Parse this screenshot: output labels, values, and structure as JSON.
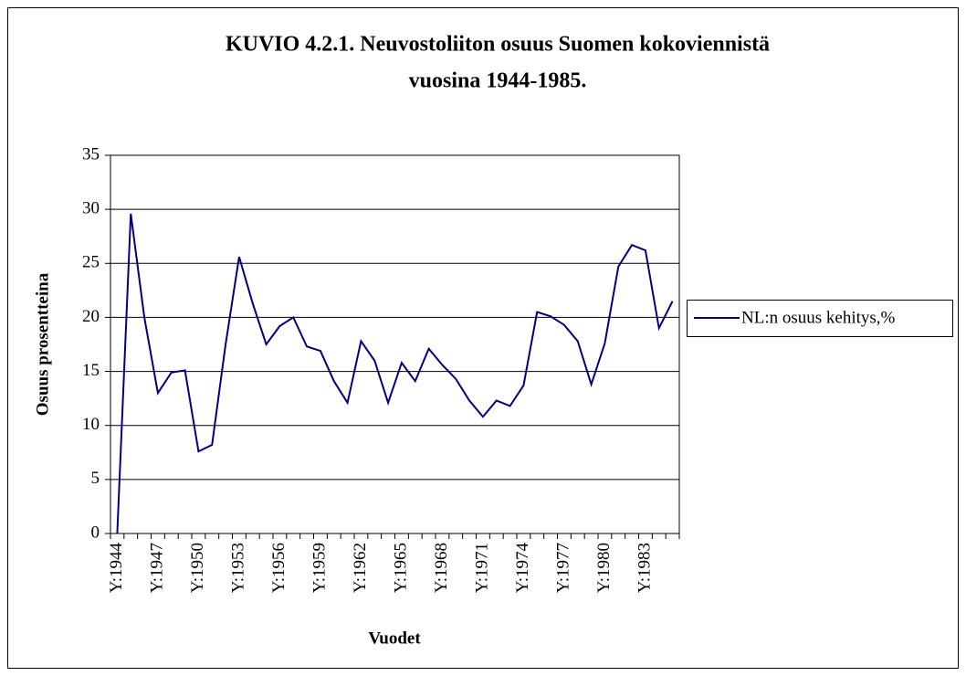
{
  "chart_data": {
    "type": "line",
    "title": [
      "KUVIO 4.2.1. Neuvostoliiton osuus Suomen kokoviennistä",
      "vuosina 1944-1985."
    ],
    "y_label": "Osuus prosentteina",
    "x_label": "Vuodet",
    "categories": [
      "Y:1944",
      null,
      null,
      "Y:1947",
      null,
      null,
      "Y:1950",
      null,
      null,
      "Y:1953",
      null,
      null,
      "Y:1956",
      null,
      null,
      "Y:1959",
      null,
      null,
      "Y:1962",
      null,
      null,
      "Y:1965",
      null,
      null,
      "Y:1968",
      null,
      null,
      "Y:1971",
      null,
      null,
      "Y:1974",
      null,
      null,
      "Y:1977",
      null,
      null,
      "Y:1980",
      null,
      null,
      "Y:1983",
      null,
      null
    ],
    "series": [
      {
        "name": "NL:n osuus kehitys,%",
        "color": "#000080",
        "values": [
          0,
          29.6,
          20,
          13,
          14.9,
          15.1,
          7.6,
          8.2,
          17.5,
          25.6,
          21.3,
          17.5,
          19.2,
          20,
          17.3,
          16.9,
          14.1,
          12.1,
          17.8,
          16,
          12.1,
          15.8,
          14.1,
          17.1,
          15.6,
          14.3,
          12.3,
          10.8,
          12.3,
          11.8,
          13.7,
          20.5,
          20.1,
          19.3,
          17.8,
          13.8,
          17.6,
          24.7,
          26.7,
          26.2,
          19,
          21.5
        ]
      }
    ],
    "ylim": [
      0,
      35
    ],
    "yticks": [
      0,
      5,
      10,
      15,
      20,
      25,
      30,
      35
    ],
    "grid": true,
    "legend": "right"
  }
}
